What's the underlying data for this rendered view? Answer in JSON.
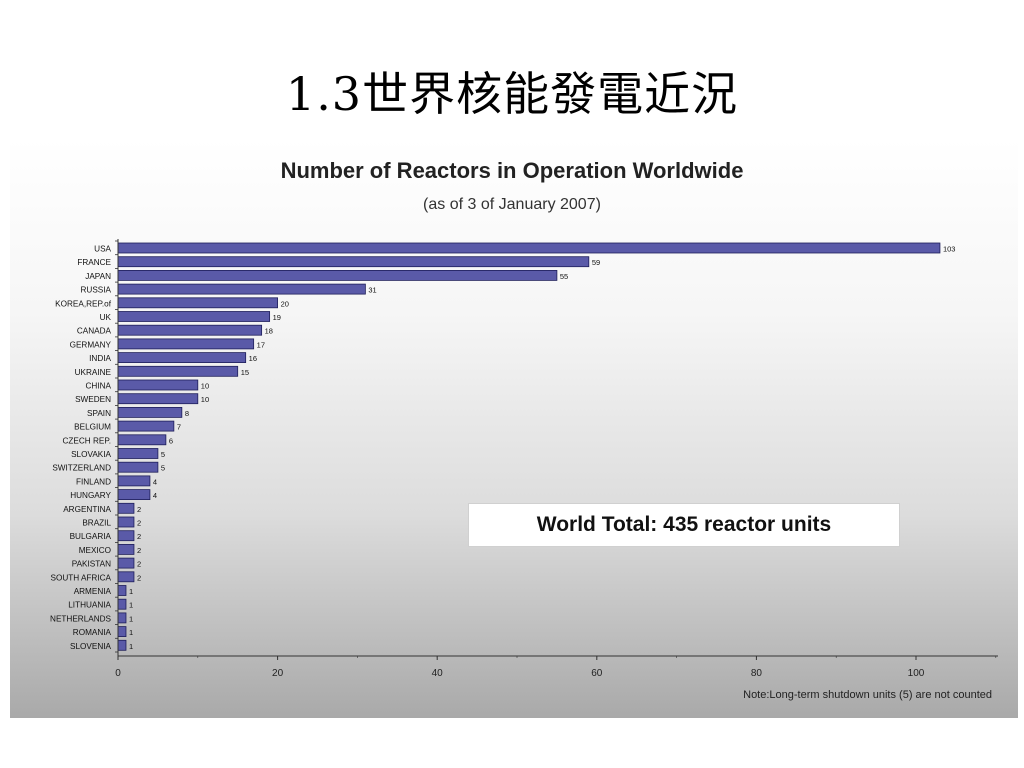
{
  "slide": {
    "title": "1.3世界核能發電近況"
  },
  "chart_data": {
    "type": "bar",
    "orientation": "horizontal",
    "title": "Number of Reactors in Operation Worldwide",
    "subtitle": "(as of 3 of January 2007)",
    "categories": [
      "USA",
      "FRANCE",
      "JAPAN",
      "RUSSIA",
      "KOREA,REP.of",
      "UK",
      "CANADA",
      "GERMANY",
      "INDIA",
      "UKRAINE",
      "CHINA",
      "SWEDEN",
      "SPAIN",
      "BELGIUM",
      "CZECH REP.",
      "SLOVAKIA",
      "SWITZERLAND",
      "FINLAND",
      "HUNGARY",
      "ARGENTINA",
      "BRAZIL",
      "BULGARIA",
      "MEXICO",
      "PAKISTAN",
      "SOUTH AFRICA",
      "ARMENIA",
      "LITHUANIA",
      "NETHERLANDS",
      "ROMANIA",
      "SLOVENIA"
    ],
    "values": [
      103,
      59,
      55,
      31,
      20,
      19,
      18,
      17,
      16,
      15,
      10,
      10,
      8,
      7,
      6,
      5,
      5,
      4,
      4,
      2,
      2,
      2,
      2,
      2,
      2,
      1,
      1,
      1,
      1,
      1
    ],
    "xlim": [
      0,
      110
    ],
    "xticks": [
      0,
      20,
      40,
      60,
      80,
      100
    ],
    "bar_color": "#5a5aa8",
    "annotation": "World Total:  435 reactor units",
    "note": "Note:Long-term shutdown units (5) are not counted"
  }
}
